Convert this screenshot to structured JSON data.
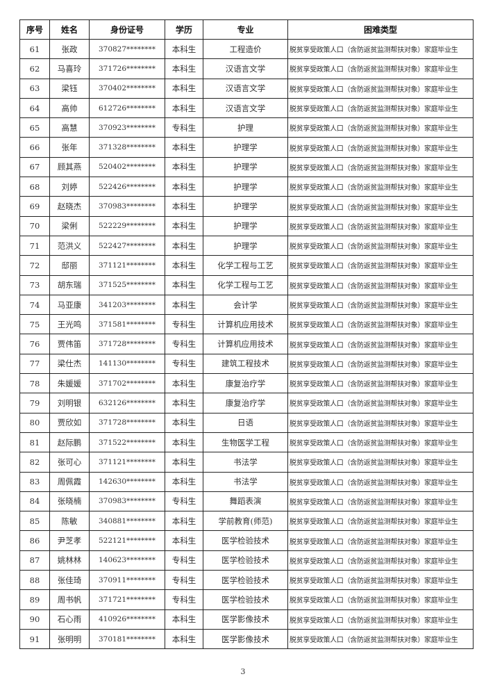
{
  "headers": [
    "序号",
    "姓名",
    "身份证号",
    "学历",
    "专业",
    "困难类型"
  ],
  "rows": [
    [
      "61",
      "张政",
      "370827********",
      "本科生",
      "工程造价",
      "脱贫享受政策人口（含防返贫监测帮扶对象）家庭毕业生"
    ],
    [
      "62",
      "马喜玲",
      "371726********",
      "本科生",
      "汉语言文学",
      "脱贫享受政策人口（含防返贫监测帮扶对象）家庭毕业生"
    ],
    [
      "63",
      "梁钰",
      "370402********",
      "本科生",
      "汉语言文学",
      "脱贫享受政策人口（含防返贫监测帮扶对象）家庭毕业生"
    ],
    [
      "64",
      "高帅",
      "612726********",
      "本科生",
      "汉语言文学",
      "脱贫享受政策人口（含防返贫监测帮扶对象）家庭毕业生"
    ],
    [
      "65",
      "高慧",
      "370923********",
      "专科生",
      "护理",
      "脱贫享受政策人口（含防返贫监测帮扶对象）家庭毕业生"
    ],
    [
      "66",
      "张年",
      "371328********",
      "本科生",
      "护理学",
      "脱贫享受政策人口（含防返贫监测帮扶对象）家庭毕业生"
    ],
    [
      "67",
      "顾其燕",
      "520402********",
      "本科生",
      "护理学",
      "脱贫享受政策人口（含防返贫监测帮扶对象）家庭毕业生"
    ],
    [
      "68",
      "刘婷",
      "522426********",
      "本科生",
      "护理学",
      "脱贫享受政策人口（含防返贫监测帮扶对象）家庭毕业生"
    ],
    [
      "69",
      "赵晓杰",
      "370983********",
      "本科生",
      "护理学",
      "脱贫享受政策人口（含防返贫监测帮扶对象）家庭毕业生"
    ],
    [
      "70",
      "梁俐",
      "522229********",
      "本科生",
      "护理学",
      "脱贫享受政策人口（含防返贫监测帮扶对象）家庭毕业生"
    ],
    [
      "71",
      "范洪义",
      "522427********",
      "本科生",
      "护理学",
      "脱贫享受政策人口（含防返贫监测帮扶对象）家庭毕业生"
    ],
    [
      "72",
      "邸丽",
      "371121********",
      "本科生",
      "化学工程与工艺",
      "脱贫享受政策人口（含防返贫监测帮扶对象）家庭毕业生"
    ],
    [
      "73",
      "胡东瑞",
      "371525********",
      "本科生",
      "化学工程与工艺",
      "脱贫享受政策人口（含防返贫监测帮扶对象）家庭毕业生"
    ],
    [
      "74",
      "马亚康",
      "341203********",
      "本科生",
      "会计学",
      "脱贫享受政策人口（含防返贫监测帮扶对象）家庭毕业生"
    ],
    [
      "75",
      "王光鸣",
      "371581********",
      "专科生",
      "计算机应用技术",
      "脱贫享受政策人口（含防返贫监测帮扶对象）家庭毕业生"
    ],
    [
      "76",
      "贾伟笛",
      "371728********",
      "专科生",
      "计算机应用技术",
      "脱贫享受政策人口（含防返贫监测帮扶对象）家庭毕业生"
    ],
    [
      "77",
      "梁仕杰",
      "141130********",
      "专科生",
      "建筑工程技术",
      "脱贫享受政策人口（含防返贫监测帮扶对象）家庭毕业生"
    ],
    [
      "78",
      "朱媛媛",
      "371702********",
      "本科生",
      "康复治疗学",
      "脱贫享受政策人口（含防返贫监测帮扶对象）家庭毕业生"
    ],
    [
      "79",
      "刘明银",
      "632126********",
      "本科生",
      "康复治疗学",
      "脱贫享受政策人口（含防返贫监测帮扶对象）家庭毕业生"
    ],
    [
      "80",
      "贾欣如",
      "371728********",
      "本科生",
      "日语",
      "脱贫享受政策人口（含防返贫监测帮扶对象）家庭毕业生"
    ],
    [
      "81",
      "赵际鹏",
      "371522********",
      "本科生",
      "生物医学工程",
      "脱贫享受政策人口（含防返贫监测帮扶对象）家庭毕业生"
    ],
    [
      "82",
      "张可心",
      "371121********",
      "本科生",
      "书法学",
      "脱贫享受政策人口（含防返贫监测帮扶对象）家庭毕业生"
    ],
    [
      "83",
      "周佩霞",
      "142630********",
      "本科生",
      "书法学",
      "脱贫享受政策人口（含防返贫监测帮扶对象）家庭毕业生"
    ],
    [
      "84",
      "张晓楠",
      "370983********",
      "专科生",
      "舞蹈表演",
      "脱贫享受政策人口（含防返贫监测帮扶对象）家庭毕业生"
    ],
    [
      "85",
      "陈敏",
      "340881********",
      "本科生",
      "学前教育(师范)",
      "脱贫享受政策人口（含防返贫监测帮扶对象）家庭毕业生"
    ],
    [
      "86",
      "尹芝孝",
      "522121********",
      "本科生",
      "医学检验技术",
      "脱贫享受政策人口（含防返贫监测帮扶对象）家庭毕业生"
    ],
    [
      "87",
      "姚林林",
      "140623********",
      "专科生",
      "医学检验技术",
      "脱贫享受政策人口（含防返贫监测帮扶对象）家庭毕业生"
    ],
    [
      "88",
      "张佳琦",
      "370911********",
      "专科生",
      "医学检验技术",
      "脱贫享受政策人口（含防返贫监测帮扶对象）家庭毕业生"
    ],
    [
      "89",
      "周书帆",
      "371721********",
      "专科生",
      "医学检验技术",
      "脱贫享受政策人口（含防返贫监测帮扶对象）家庭毕业生"
    ],
    [
      "90",
      "石心雨",
      "410926********",
      "本科生",
      "医学影像技术",
      "脱贫享受政策人口（含防返贫监测帮扶对象）家庭毕业生"
    ],
    [
      "91",
      "张明明",
      "370181********",
      "本科生",
      "医学影像技术",
      "脱贫享受政策人口（含防返贫监测帮扶对象）家庭毕业生"
    ]
  ],
  "page_number": "3"
}
